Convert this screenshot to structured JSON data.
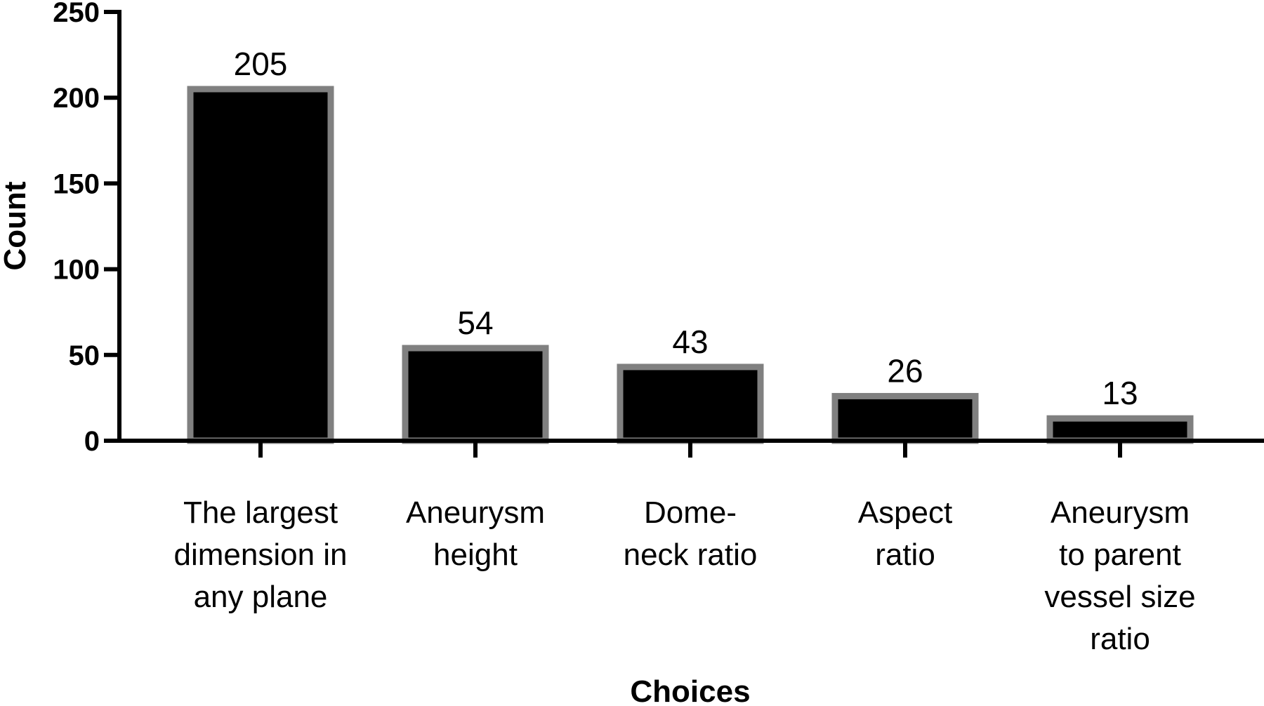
{
  "chart_data": {
    "type": "bar",
    "categories": [
      [
        "The largest",
        "dimension in",
        "any plane"
      ],
      [
        "Aneurysm",
        "height"
      ],
      [
        "Dome-",
        "neck ratio"
      ],
      [
        "Aspect",
        "ratio"
      ],
      [
        "Aneurysm",
        "to parent",
        "vessel size",
        "ratio"
      ]
    ],
    "values": [
      205,
      54,
      43,
      26,
      13
    ],
    "xlabel": "Choices",
    "ylabel": "Count",
    "ylim": [
      0,
      250
    ],
    "yticks": [
      0,
      50,
      100,
      150,
      200,
      250
    ],
    "bar_color": "#000000",
    "bar_edge_color": "#808080",
    "grid": false,
    "legend": "none"
  }
}
